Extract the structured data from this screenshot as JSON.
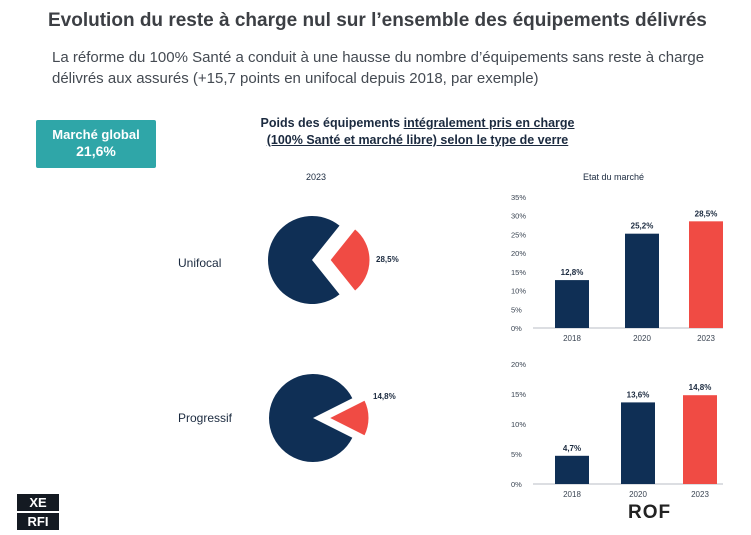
{
  "header": {
    "title": "Evolution du reste à charge nul sur l’ensemble des équipements délivrés",
    "subtitle": "La réforme du 100% Santé a conduit à une hausse du nombre d’équipements sans reste à charge délivrés aux assurés (+15,7 points en unifocal depuis 2018, par exemple)"
  },
  "badge": {
    "label": "Marché global",
    "value": "21,6%",
    "sub": ""
  },
  "chart_header": {
    "title_prefix": "Poids des équipements ",
    "title_underlined": "intégralement pris en charge",
    "title_line2": "(100% Santé et marché libre) selon le type de verre",
    "subnote": "",
    "pie_year": "2023",
    "bars_title": "Etat du marché"
  },
  "colors": {
    "navy": "#0f2f55",
    "red": "#f04b44",
    "text": "#1b2a3f"
  },
  "chart_data": [
    {
      "type": "pie",
      "label": "Unifocal",
      "year": "2023",
      "slices": [
        {
          "name": "",
          "value": 71.5,
          "color": "#0f2f55"
        },
        {
          "name": "",
          "value": 28.5,
          "color": "#f04b44",
          "label": "28,5%"
        }
      ]
    },
    {
      "type": "pie",
      "label": "Progressif",
      "year": "2023",
      "slices": [
        {
          "name": "",
          "value": 85.2,
          "color": "#0f2f55"
        },
        {
          "name": "",
          "value": 14.8,
          "color": "#f04b44",
          "label": "14,8%"
        }
      ]
    },
    {
      "type": "bar",
      "title": "Etat du marché",
      "categories": [
        "2018",
        "2020",
        "2023"
      ],
      "values": [
        12.8,
        25.2,
        28.5
      ],
      "labels": [
        "12,8%",
        "25,2%",
        "28,5%"
      ],
      "colors": [
        "#0f2f55",
        "#0f2f55",
        "#f04b44"
      ],
      "ylim": [
        0,
        35
      ],
      "yticks": [
        "0%",
        "5%",
        "10%",
        "15%",
        "20%",
        "25%",
        "30%",
        "35%"
      ]
    },
    {
      "type": "bar",
      "categories": [
        "2018",
        "2020",
        "2023"
      ],
      "values": [
        4.7,
        13.6,
        14.8
      ],
      "labels": [
        "4,7%",
        "13,6%",
        "14,8%"
      ],
      "colors": [
        "#0f2f55",
        "#0f2f55",
        "#f04b44"
      ],
      "ylim": [
        0,
        20
      ],
      "yticks": [
        "0%",
        "5%",
        "10%",
        "15%",
        "20%"
      ]
    }
  ],
  "footer": {
    "note": "",
    "xerfi_letters": [
      "XE",
      "RFI"
    ],
    "xerfi_sub": "",
    "rof_text": "ROF",
    "rof_sub": ""
  }
}
